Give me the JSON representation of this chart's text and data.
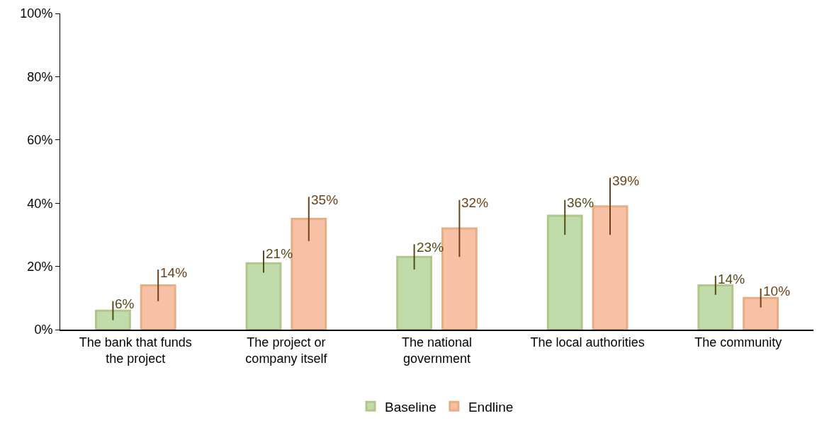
{
  "chart_data": {
    "type": "bar",
    "categories": [
      "The bank that funds the project",
      "The project or company itself",
      "The national government",
      "The local authorities",
      "The community"
    ],
    "series": [
      {
        "name": "Baseline",
        "color": "#c0dcab",
        "values": [
          6,
          21,
          23,
          36,
          14
        ],
        "errors": [
          [
            3,
            9
          ],
          [
            18,
            25
          ],
          [
            19,
            27
          ],
          [
            30,
            41
          ],
          [
            11,
            17
          ]
        ],
        "value_labels": [
          "6%",
          "21%",
          "23%",
          "36%",
          "14%"
        ]
      },
      {
        "name": "Endline",
        "color": "#f8c1a5",
        "values": [
          14,
          35,
          32,
          39,
          10
        ],
        "errors": [
          [
            9,
            19
          ],
          [
            28,
            42
          ],
          [
            23,
            41
          ],
          [
            30,
            48
          ],
          [
            7,
            13
          ]
        ],
        "value_labels": [
          "14%",
          "35%",
          "32%",
          "39%",
          "10%"
        ]
      }
    ],
    "ylim": [
      0,
      100
    ],
    "yticks": [
      {
        "value": 0,
        "label": "0%"
      },
      {
        "value": 20,
        "label": "20%"
      },
      {
        "value": 40,
        "label": "40%"
      },
      {
        "value": 60,
        "label": "60%"
      },
      {
        "value": 80,
        "label": "80%"
      },
      {
        "value": 100,
        "label": "100%"
      }
    ],
    "grid": false,
    "legend": "bottom"
  }
}
